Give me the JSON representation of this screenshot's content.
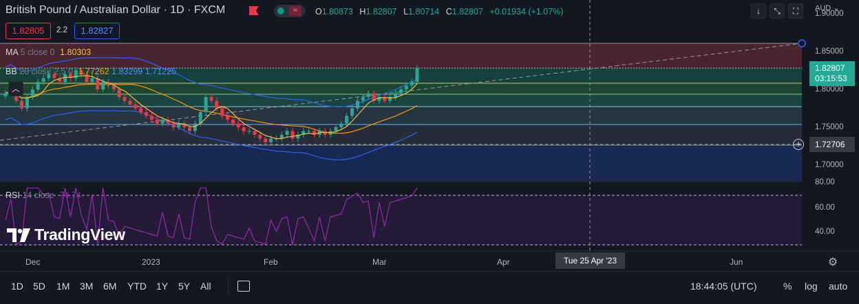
{
  "header": {
    "title": "British Pound / Australian Dollar · 1D · FXCM",
    "ohlc": [
      {
        "k": "O",
        "v": "1.80873"
      },
      {
        "k": "H",
        "v": "1.82807"
      },
      {
        "k": "L",
        "v": "1.80714"
      },
      {
        "k": "C",
        "v": "1.82807"
      }
    ],
    "change": "+0.01934 (+1.07%)",
    "flag_icon": "flag-icon",
    "eye_icon": "visibility-icon"
  },
  "toolbar_top": {
    "buttons": [
      {
        "name": "scroll-down-icon",
        "glyph": "↓"
      },
      {
        "name": "fullscreen-collapse-icon",
        "glyph": "⤡"
      },
      {
        "name": "screenshot-icon",
        "glyph": "⛶"
      }
    ],
    "currency": "AUD",
    "currency_caret": "⌄"
  },
  "quote": {
    "bid": "1.82805",
    "spread": "2.2",
    "ask": "1.82827"
  },
  "indicators": {
    "ma": {
      "name": "MA",
      "params": "5 close 0",
      "value": "1.80303",
      "color": "#f0c040"
    },
    "bb": {
      "name": "BB",
      "params": "20 close 2.5 0",
      "basis": "1.77262",
      "upper": "1.83299",
      "lower": "1.71225",
      "basis_color": "#ff9800",
      "band_color": "#2962ff"
    },
    "rsi": {
      "name": "RSI",
      "params": "14 close",
      "value": "74.74",
      "color": "#9c27b0"
    }
  },
  "price_axis": {
    "labels": [
      "1.90000",
      "1.85000",
      "1.80000",
      "1.75000",
      "1.70000"
    ],
    "current_price": "1.82807",
    "countdown": "03:15:53",
    "crosshair_price": "1.72706"
  },
  "rsi_axis": {
    "labels": [
      "80.00",
      "60.00",
      "40.00"
    ]
  },
  "time_axis": {
    "labels": [
      "Dec",
      "2023",
      "Feb",
      "Mar",
      "Apr",
      "Jun"
    ],
    "crosshair_time": "Tue 25 Apr '23"
  },
  "bottom_bar": {
    "ranges": [
      "1D",
      "5D",
      "1M",
      "3M",
      "6M",
      "YTD",
      "1Y",
      "5Y",
      "All"
    ],
    "clock": "18:44:05 (UTC)",
    "percent": "%",
    "log": "log",
    "auto": "auto"
  },
  "watermark": "TradingView",
  "colors": {
    "up": "#22ab94",
    "down": "#f23645",
    "background": "#131722"
  }
}
